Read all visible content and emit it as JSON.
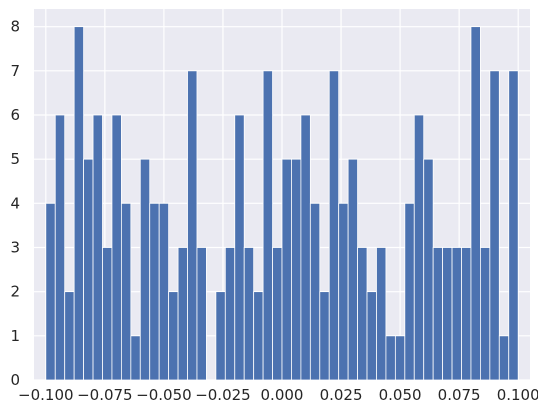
{
  "chart_data": {
    "type": "bar",
    "style": "histogram",
    "title": "",
    "xlabel": "",
    "ylabel": "",
    "xlim": [
      -0.105,
      0.105
    ],
    "ylim": [
      0,
      8.4
    ],
    "bins": {
      "start": -0.1,
      "end": 0.1,
      "count": 50
    },
    "values": [
      4,
      6,
      2,
      8,
      5,
      6,
      3,
      6,
      4,
      1,
      5,
      4,
      4,
      2,
      3,
      7,
      3,
      0,
      2,
      3,
      6,
      3,
      2,
      7,
      3,
      5,
      5,
      6,
      4,
      2,
      7,
      4,
      5,
      3,
      2,
      3,
      1,
      1,
      4,
      6,
      5,
      3,
      3,
      3,
      3,
      8,
      3,
      7,
      1,
      7
    ],
    "x_ticks": [
      -0.1,
      -0.075,
      -0.05,
      -0.025,
      0.0,
      0.025,
      0.05,
      0.075,
      0.1
    ],
    "x_tick_labels": [
      "−0.100",
      "−0.075",
      "−0.050",
      "−0.025",
      "0.000",
      "0.025",
      "0.050",
      "0.075",
      "0.100"
    ],
    "y_ticks": [
      0,
      1,
      2,
      3,
      4,
      5,
      6,
      7,
      8
    ],
    "y_tick_labels": [
      "0",
      "1",
      "2",
      "3",
      "4",
      "5",
      "6",
      "7",
      "8"
    ],
    "grid": true,
    "legend": "none",
    "colors": {
      "bar": "#4c72b0",
      "background": "#eaeaf2",
      "grid": "#ffffff",
      "text": "#262626"
    }
  }
}
